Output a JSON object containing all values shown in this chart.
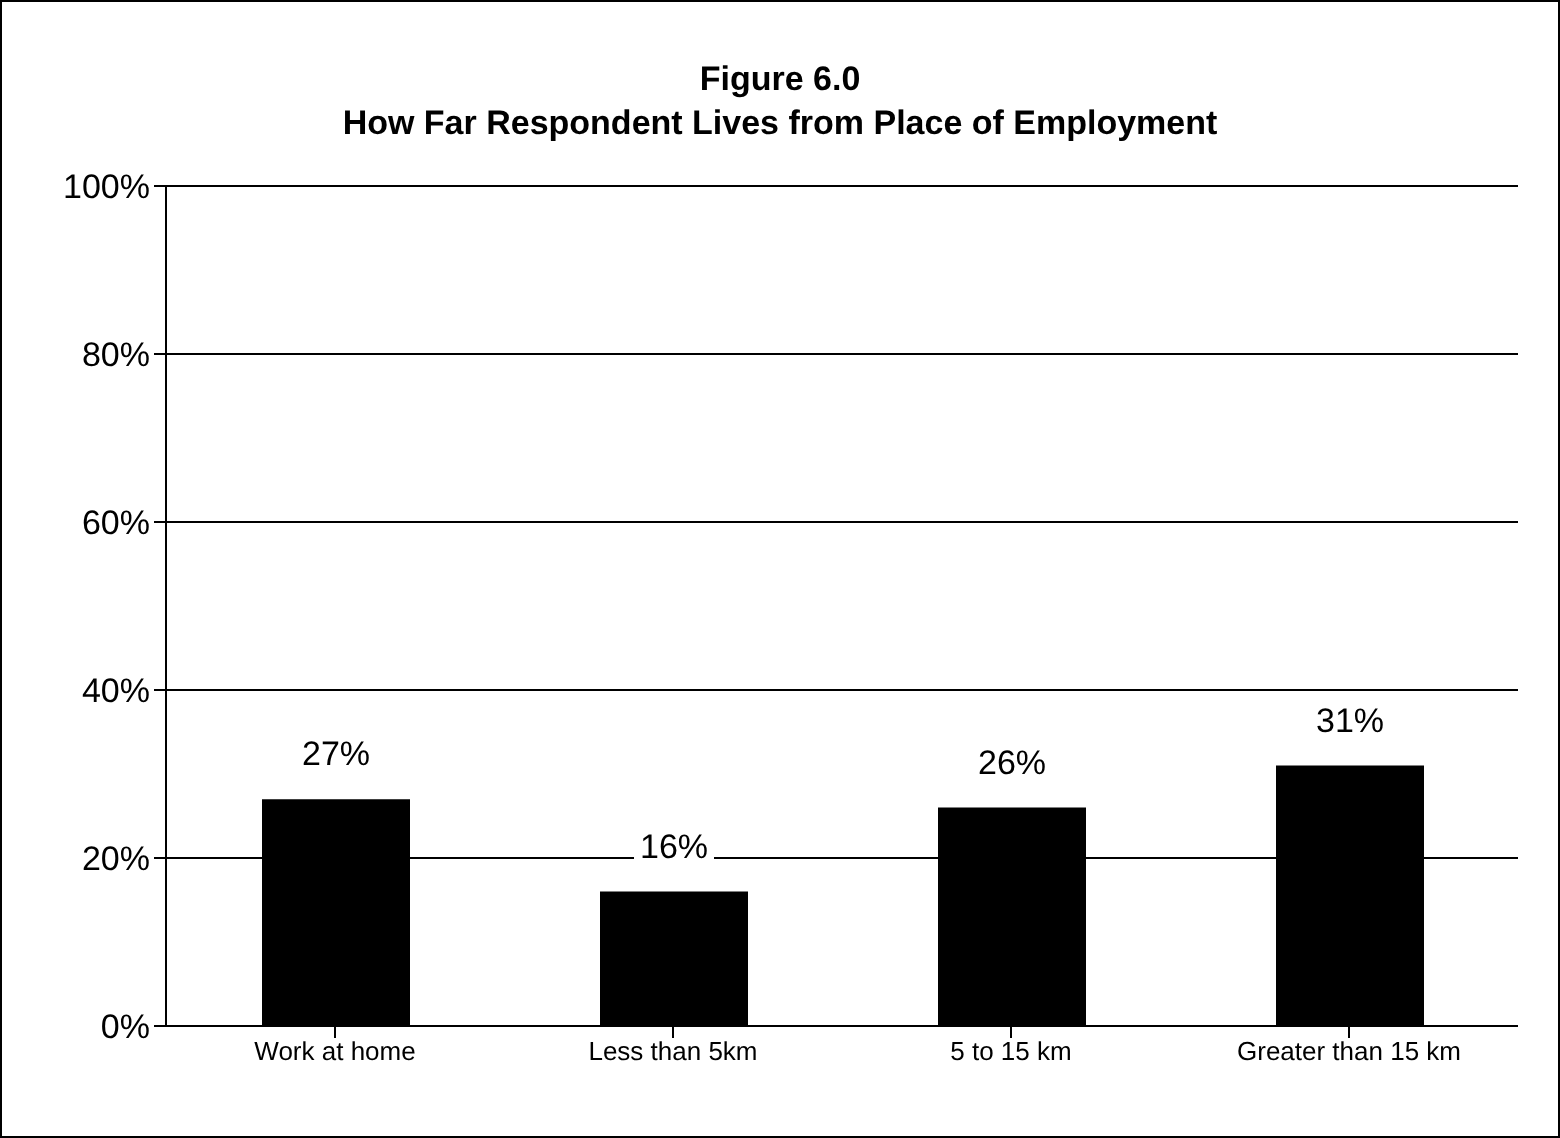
{
  "chart_data": {
    "type": "bar",
    "title": "Figure 6.0",
    "subtitle": "How Far Respondent Lives from Place of Employment",
    "categories": [
      "Work at home",
      "Less than 5km",
      "5 to 15 km",
      "Greater than 15 km"
    ],
    "values": [
      27,
      16,
      26,
      31
    ],
    "value_labels": [
      "27%",
      "16%",
      "26%",
      "31%"
    ],
    "color": "#000000",
    "ylim": [
      0,
      100
    ],
    "yticks": [
      {
        "value": 0,
        "label": "0%"
      },
      {
        "value": 20,
        "label": "20%"
      },
      {
        "value": 40,
        "label": "40%"
      },
      {
        "value": 60,
        "label": "60%"
      },
      {
        "value": 80,
        "label": "80%"
      },
      {
        "value": 100,
        "label": "100%"
      }
    ],
    "grid": "y",
    "legend": false
  }
}
